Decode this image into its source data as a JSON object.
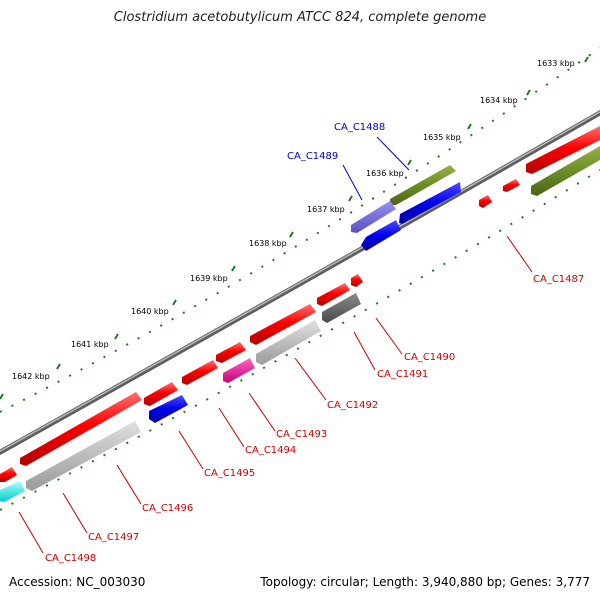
{
  "title": "Clostridium acetobutylicum ATCC 824, complete genome",
  "footer": {
    "accession": "Accession: NC_003030",
    "summary": "Topology: circular; Length: 3,940,880 bp; Genes: 3,777"
  },
  "colors": {
    "backbone": "#808080",
    "ticks": "#1e7a1e",
    "forward_gene": "#ff0000",
    "label_red": "#cc0000",
    "label_blue": "#0000cc"
  },
  "kbp_ticks": [
    "1633 kbp",
    "1634 kbp",
    "1635 kbp",
    "1636 kbp",
    "1637 kbp",
    "1638 kbp",
    "1639 kbp",
    "1640 kbp",
    "1641 kbp",
    "1642 kbp"
  ],
  "gene_labels": [
    {
      "name": "CA_C1488",
      "color": "#0000cc"
    },
    {
      "name": "CA_C1489",
      "color": "#0000cc"
    },
    {
      "name": "CA_C1487",
      "color": "#cc0000"
    },
    {
      "name": "CA_C1490",
      "color": "#cc0000"
    },
    {
      "name": "CA_C1491",
      "color": "#cc0000"
    },
    {
      "name": "CA_C1492",
      "color": "#cc0000"
    },
    {
      "name": "CA_C1493",
      "color": "#cc0000"
    },
    {
      "name": "CA_C1494",
      "color": "#cc0000"
    },
    {
      "name": "CA_C1495",
      "color": "#cc0000"
    },
    {
      "name": "CA_C1496",
      "color": "#cc0000"
    },
    {
      "name": "CA_C1497",
      "color": "#cc0000"
    },
    {
      "name": "CA_C1498",
      "color": "#cc0000"
    }
  ]
}
